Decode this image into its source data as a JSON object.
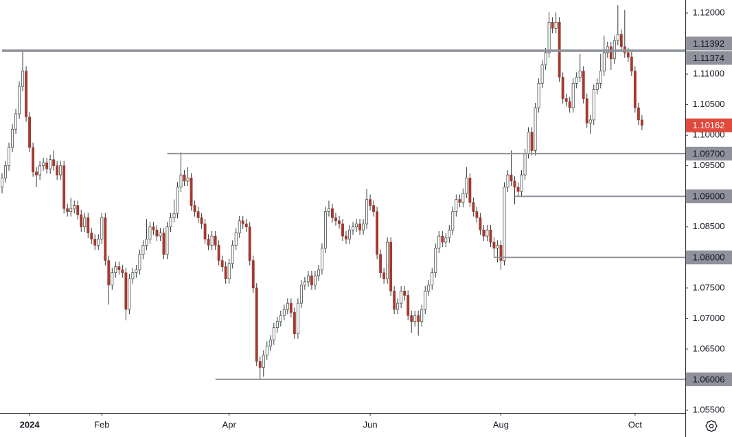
{
  "chart_data": {
    "type": "candlestick",
    "up_color": "#ffffff",
    "down_color": "#a33a2f",
    "xlim": [
      -0.6,
      198.6
    ],
    "ylim": [
      1.05455,
      1.12213
    ],
    "xticks": [
      {
        "value": 8,
        "label": "2024"
      },
      {
        "value": 29,
        "label": "Feb"
      },
      {
        "value": 66,
        "label": "Apr"
      },
      {
        "value": 107,
        "label": "Jun"
      },
      {
        "value": 145,
        "label": "Aug"
      },
      {
        "value": 184,
        "label": "Oct"
      }
    ],
    "yticks": [
      {
        "value": 1.12,
        "label": "1.12000"
      },
      {
        "value": 1.11,
        "label": "1.11000"
      },
      {
        "value": 1.105,
        "label": "1.10500"
      },
      {
        "value": 1.1,
        "label": "1.10000"
      },
      {
        "value": 1.095,
        "label": "1.09500"
      },
      {
        "value": 1.085,
        "label": "1.08500"
      },
      {
        "value": 1.075,
        "label": "1.07500"
      },
      {
        "value": 1.07,
        "label": "1.07000"
      },
      {
        "value": 1.065,
        "label": "1.06500"
      },
      {
        "value": 1.055,
        "label": "1.05500"
      }
    ],
    "levels": [
      {
        "value": 1.11392,
        "label": "1.11392",
        "from": 0
      },
      {
        "value": 1.11374,
        "label": "1.11374",
        "from": 0
      },
      {
        "value": 1.097,
        "label": "1.09700",
        "from": 48
      },
      {
        "value": 1.09,
        "label": "1.09000",
        "from": 149
      },
      {
        "value": 1.08,
        "label": "1.08000",
        "from": 143
      },
      {
        "value": 1.06006,
        "label": "1.06006",
        "from": 62
      }
    ],
    "last_price": {
      "value": 1.10162,
      "label": "1.10162",
      "color": "#e0493b"
    },
    "candles": [
      [
        1.0915,
        1.0938,
        1.0905,
        1.093
      ],
      [
        1.093,
        1.0958,
        1.0922,
        1.095
      ],
      [
        1.095,
        1.0988,
        1.0942,
        1.098
      ],
      [
        1.098,
        1.1018,
        1.0972,
        1.101
      ],
      [
        1.101,
        1.1043,
        1.1002,
        1.1035
      ],
      [
        1.1035,
        1.1088,
        1.1027,
        1.108
      ],
      [
        1.108,
        1.1139,
        1.1072,
        1.1105
      ],
      [
        1.1105,
        1.1113,
        1.1022,
        1.103
      ],
      [
        1.103,
        1.1038,
        1.0972,
        1.098
      ],
      [
        1.098,
        1.0988,
        1.0932,
        1.094
      ],
      [
        1.094,
        1.0948,
        1.0915,
        1.0935
      ],
      [
        1.0935,
        1.0958,
        1.0927,
        1.095
      ],
      [
        1.095,
        1.0963,
        1.0942,
        1.0955
      ],
      [
        1.0955,
        1.0963,
        1.0937,
        1.0945
      ],
      [
        1.0945,
        1.0968,
        1.0937,
        1.096
      ],
      [
        1.096,
        1.0975,
        1.0942,
        1.095
      ],
      [
        1.095,
        1.0958,
        1.0927,
        1.0935
      ],
      [
        1.0935,
        1.0958,
        1.0927,
        1.095
      ],
      [
        1.095,
        1.0958,
        1.0872,
        1.088
      ],
      [
        1.088,
        1.0888,
        1.0867,
        1.0875
      ],
      [
        1.0875,
        1.0898,
        1.0867,
        1.088
      ],
      [
        1.088,
        1.0893,
        1.0872,
        1.0885
      ],
      [
        1.0885,
        1.0893,
        1.0862,
        1.087
      ],
      [
        1.087,
        1.0878,
        1.0842,
        1.085
      ],
      [
        1.085,
        1.0873,
        1.0842,
        1.0865
      ],
      [
        1.0865,
        1.0873,
        1.0832,
        1.084
      ],
      [
        1.084,
        1.0848,
        1.0822,
        1.083
      ],
      [
        1.083,
        1.0838,
        1.0812,
        1.082
      ],
      [
        1.082,
        1.0838,
        1.0812,
        1.083
      ],
      [
        1.083,
        1.0873,
        1.0822,
        1.0865
      ],
      [
        1.0865,
        1.0873,
        1.0787,
        1.0795
      ],
      [
        1.0795,
        1.0803,
        1.0723,
        1.0755
      ],
      [
        1.0755,
        1.0783,
        1.0747,
        1.0775
      ],
      [
        1.0775,
        1.0793,
        1.0767,
        1.0785
      ],
      [
        1.0785,
        1.0793,
        1.0772,
        1.078
      ],
      [
        1.078,
        1.0788,
        1.0767,
        1.0775
      ],
      [
        1.0775,
        1.0783,
        1.0697,
        1.0715
      ],
      [
        1.0715,
        1.0773,
        1.0707,
        1.0765
      ],
      [
        1.0765,
        1.0783,
        1.0757,
        1.0775
      ],
      [
        1.0775,
        1.0788,
        1.0767,
        1.078
      ],
      [
        1.078,
        1.0813,
        1.0772,
        1.0805
      ],
      [
        1.0805,
        1.0828,
        1.0797,
        1.082
      ],
      [
        1.082,
        1.0863,
        1.0812,
        1.083
      ],
      [
        1.083,
        1.0858,
        1.0822,
        1.085
      ],
      [
        1.085,
        1.0858,
        1.0837,
        1.0845
      ],
      [
        1.0845,
        1.0853,
        1.0827,
        1.0835
      ],
      [
        1.0835,
        1.0848,
        1.0827,
        1.084
      ],
      [
        1.084,
        1.0848,
        1.0797,
        1.0805
      ],
      [
        1.0805,
        1.0858,
        1.0797,
        1.085
      ],
      [
        1.085,
        1.0873,
        1.0842,
        1.0865
      ],
      [
        1.0865,
        1.0895,
        1.0857,
        1.0872
      ],
      [
        1.0872,
        1.0923,
        1.0864,
        1.0915
      ],
      [
        1.0915,
        1.0972,
        1.0907,
        1.0935
      ],
      [
        1.0935,
        1.0943,
        1.0917,
        1.0925
      ],
      [
        1.0925,
        1.0948,
        1.0917,
        1.093
      ],
      [
        1.093,
        1.0938,
        1.0877,
        1.0885
      ],
      [
        1.0885,
        1.0893,
        1.0867,
        1.0875
      ],
      [
        1.0875,
        1.0883,
        1.0857,
        1.0865
      ],
      [
        1.0865,
        1.0873,
        1.0847,
        1.0855
      ],
      [
        1.0855,
        1.0863,
        1.0822,
        1.083
      ],
      [
        1.083,
        1.0838,
        1.0812,
        1.082
      ],
      [
        1.082,
        1.0843,
        1.0812,
        1.0835
      ],
      [
        1.0835,
        1.0843,
        1.0812,
        1.082
      ],
      [
        1.082,
        1.0828,
        1.0787,
        1.0795
      ],
      [
        1.0795,
        1.0803,
        1.0777,
        1.0785
      ],
      [
        1.0785,
        1.0793,
        1.0757,
        1.0765
      ],
      [
        1.0765,
        1.0798,
        1.0757,
        1.079
      ],
      [
        1.079,
        1.0828,
        1.0782,
        1.082
      ],
      [
        1.082,
        1.0848,
        1.0812,
        1.084
      ],
      [
        1.084,
        1.0868,
        1.0832,
        1.086
      ],
      [
        1.086,
        1.0868,
        1.0847,
        1.0855
      ],
      [
        1.0855,
        1.0863,
        1.0842,
        1.085
      ],
      [
        1.085,
        1.0858,
        1.0787,
        1.0795
      ],
      [
        1.0795,
        1.0803,
        1.0742,
        1.075
      ],
      [
        1.075,
        1.0758,
        1.0622,
        1.063
      ],
      [
        1.063,
        1.0638,
        1.0601,
        1.062
      ],
      [
        1.062,
        1.0648,
        1.0605,
        1.064
      ],
      [
        1.064,
        1.0663,
        1.0632,
        1.0655
      ],
      [
        1.0655,
        1.0673,
        1.0647,
        1.0665
      ],
      [
        1.0665,
        1.0693,
        1.0657,
        1.0685
      ],
      [
        1.0685,
        1.0703,
        1.0677,
        1.0695
      ],
      [
        1.0695,
        1.0713,
        1.0687,
        1.0705
      ],
      [
        1.0705,
        1.0723,
        1.0697,
        1.0715
      ],
      [
        1.0715,
        1.0733,
        1.0707,
        1.0725
      ],
      [
        1.0725,
        1.0733,
        1.0702,
        1.071
      ],
      [
        1.071,
        1.0718,
        1.0667,
        1.0675
      ],
      [
        1.0675,
        1.0733,
        1.0667,
        1.0725
      ],
      [
        1.0725,
        1.0763,
        1.0717,
        1.0755
      ],
      [
        1.0755,
        1.0768,
        1.0747,
        1.076
      ],
      [
        1.076,
        1.0778,
        1.0752,
        1.077
      ],
      [
        1.077,
        1.0778,
        1.0747,
        1.0755
      ],
      [
        1.0755,
        1.0778,
        1.0747,
        1.077
      ],
      [
        1.077,
        1.0788,
        1.0762,
        1.078
      ],
      [
        1.078,
        1.0823,
        1.0772,
        1.0815
      ],
      [
        1.0815,
        1.0883,
        1.0807,
        1.0875
      ],
      [
        1.0875,
        1.0893,
        1.0867,
        1.088
      ],
      [
        1.088,
        1.0888,
        1.0857,
        1.0865
      ],
      [
        1.0865,
        1.0873,
        1.0852,
        1.086
      ],
      [
        1.086,
        1.0868,
        1.0847,
        1.0855
      ],
      [
        1.0855,
        1.0863,
        1.0827,
        1.0835
      ],
      [
        1.0835,
        1.0843,
        1.0822,
        1.083
      ],
      [
        1.083,
        1.0853,
        1.0822,
        1.0845
      ],
      [
        1.0845,
        1.0858,
        1.0837,
        1.085
      ],
      [
        1.085,
        1.0863,
        1.0842,
        1.0855
      ],
      [
        1.0855,
        1.0863,
        1.0837,
        1.0845
      ],
      [
        1.0845,
        1.0863,
        1.0837,
        1.0855
      ],
      [
        1.0855,
        1.0912,
        1.0847,
        1.0895
      ],
      [
        1.0895,
        1.0903,
        1.0877,
        1.0885
      ],
      [
        1.0885,
        1.0893,
        1.0867,
        1.0875
      ],
      [
        1.0875,
        1.0883,
        1.0797,
        1.0805
      ],
      [
        1.0805,
        1.0813,
        1.0767,
        1.0775
      ],
      [
        1.0775,
        1.0783,
        1.0757,
        1.0765
      ],
      [
        1.0765,
        1.0833,
        1.0757,
        1.0825
      ],
      [
        1.0825,
        1.0833,
        1.0737,
        1.0745
      ],
      [
        1.0745,
        1.0753,
        1.0707,
        1.0715
      ],
      [
        1.0715,
        1.0733,
        1.0707,
        1.0725
      ],
      [
        1.0725,
        1.0753,
        1.0717,
        1.0745
      ],
      [
        1.0745,
        1.0753,
        1.073,
        1.0738
      ],
      [
        1.0738,
        1.0746,
        1.0697,
        1.0705
      ],
      [
        1.0705,
        1.0713,
        1.0677,
        1.0695
      ],
      [
        1.0695,
        1.0713,
        1.0687,
        1.0705
      ],
      [
        1.0705,
        1.0713,
        1.0672,
        1.0695
      ],
      [
        1.0695,
        1.0723,
        1.0687,
        1.0715
      ],
      [
        1.0715,
        1.0753,
        1.0707,
        1.0745
      ],
      [
        1.0745,
        1.0763,
        1.0737,
        1.0755
      ],
      [
        1.0755,
        1.0783,
        1.0747,
        1.0775
      ],
      [
        1.0775,
        1.0823,
        1.0767,
        1.0815
      ],
      [
        1.0815,
        1.0843,
        1.0807,
        1.0835
      ],
      [
        1.0835,
        1.0843,
        1.0817,
        1.0825
      ],
      [
        1.0825,
        1.084,
        1.0817,
        1.0832
      ],
      [
        1.0832,
        1.0853,
        1.0824,
        1.0845
      ],
      [
        1.0845,
        1.0883,
        1.0837,
        1.0875
      ],
      [
        1.0875,
        1.0903,
        1.0867,
        1.0895
      ],
      [
        1.0895,
        1.0903,
        1.0882,
        1.089
      ],
      [
        1.089,
        1.0913,
        1.0882,
        1.0905
      ],
      [
        1.0905,
        1.0948,
        1.0897,
        1.093
      ],
      [
        1.093,
        1.0938,
        1.0882,
        1.089
      ],
      [
        1.089,
        1.0898,
        1.0867,
        1.0875
      ],
      [
        1.0875,
        1.0883,
        1.0857,
        1.0865
      ],
      [
        1.0865,
        1.0873,
        1.0837,
        1.0845
      ],
      [
        1.0845,
        1.0853,
        1.0827,
        1.0835
      ],
      [
        1.0835,
        1.0853,
        1.0827,
        1.0845
      ],
      [
        1.0845,
        1.0853,
        1.0817,
        1.0825
      ],
      [
        1.0825,
        1.0833,
        1.08,
        1.0815
      ],
      [
        1.0815,
        1.0828,
        1.0792,
        1.082
      ],
      [
        1.082,
        1.0828,
        1.078,
        1.0795
      ],
      [
        1.0795,
        1.0923,
        1.0787,
        1.0915
      ],
      [
        1.0915,
        1.0943,
        1.0907,
        1.0935
      ],
      [
        1.0935,
        1.0975,
        1.0917,
        1.0925
      ],
      [
        1.0925,
        1.0933,
        1.0887,
        1.0915
      ],
      [
        1.0915,
        1.0923,
        1.09,
        1.0908
      ],
      [
        1.0908,
        1.0943,
        1.09,
        1.0935
      ],
      [
        1.0935,
        1.0978,
        1.0927,
        1.097
      ],
      [
        1.097,
        1.1013,
        1.0962,
        1.1005
      ],
      [
        1.1005,
        1.1013,
        1.0967,
        1.0975
      ],
      [
        1.0975,
        1.1053,
        1.0967,
        1.1045
      ],
      [
        1.1045,
        1.1093,
        1.1037,
        1.1085
      ],
      [
        1.1085,
        1.1123,
        1.1077,
        1.1115
      ],
      [
        1.1115,
        1.1143,
        1.1107,
        1.1135
      ],
      [
        1.1135,
        1.1201,
        1.1127,
        1.1185
      ],
      [
        1.1185,
        1.1193,
        1.1167,
        1.1175
      ],
      [
        1.1175,
        1.1201,
        1.1167,
        1.1185
      ],
      [
        1.1185,
        1.1193,
        1.1087,
        1.1095
      ],
      [
        1.1095,
        1.1103,
        1.1052,
        1.106
      ],
      [
        1.106,
        1.1068,
        1.1047,
        1.1055
      ],
      [
        1.1055,
        1.1063,
        1.1037,
        1.1045
      ],
      [
        1.1045,
        1.1093,
        1.1037,
        1.1085
      ],
      [
        1.1085,
        1.1103,
        1.1077,
        1.1095
      ],
      [
        1.1095,
        1.1133,
        1.1087,
        1.1105
      ],
      [
        1.1105,
        1.1113,
        1.1052,
        1.106
      ],
      [
        1.106,
        1.1068,
        1.1012,
        1.102
      ],
      [
        1.102,
        1.1033,
        1.1002,
        1.1025
      ],
      [
        1.1025,
        1.1083,
        1.1017,
        1.1075
      ],
      [
        1.1075,
        1.1093,
        1.1067,
        1.1085
      ],
      [
        1.1085,
        1.1133,
        1.1077,
        1.1105
      ],
      [
        1.1105,
        1.1163,
        1.1097,
        1.1135
      ],
      [
        1.1135,
        1.1153,
        1.1127,
        1.1145
      ],
      [
        1.1145,
        1.1153,
        1.1107,
        1.1125
      ],
      [
        1.1125,
        1.1163,
        1.1117,
        1.1155
      ],
      [
        1.1155,
        1.1213,
        1.1147,
        1.1165
      ],
      [
        1.1165,
        1.1173,
        1.1137,
        1.1145
      ],
      [
        1.1145,
        1.1205,
        1.1127,
        1.1135
      ],
      [
        1.1135,
        1.1143,
        1.112,
        1.1128
      ],
      [
        1.1128,
        1.1136,
        1.1097,
        1.1105
      ],
      [
        1.1105,
        1.1113,
        1.1037,
        1.1045
      ],
      [
        1.1045,
        1.1053,
        1.1017,
        1.1025
      ],
      [
        1.1025,
        1.1033,
        1.1008,
        1.10162
      ]
    ]
  }
}
